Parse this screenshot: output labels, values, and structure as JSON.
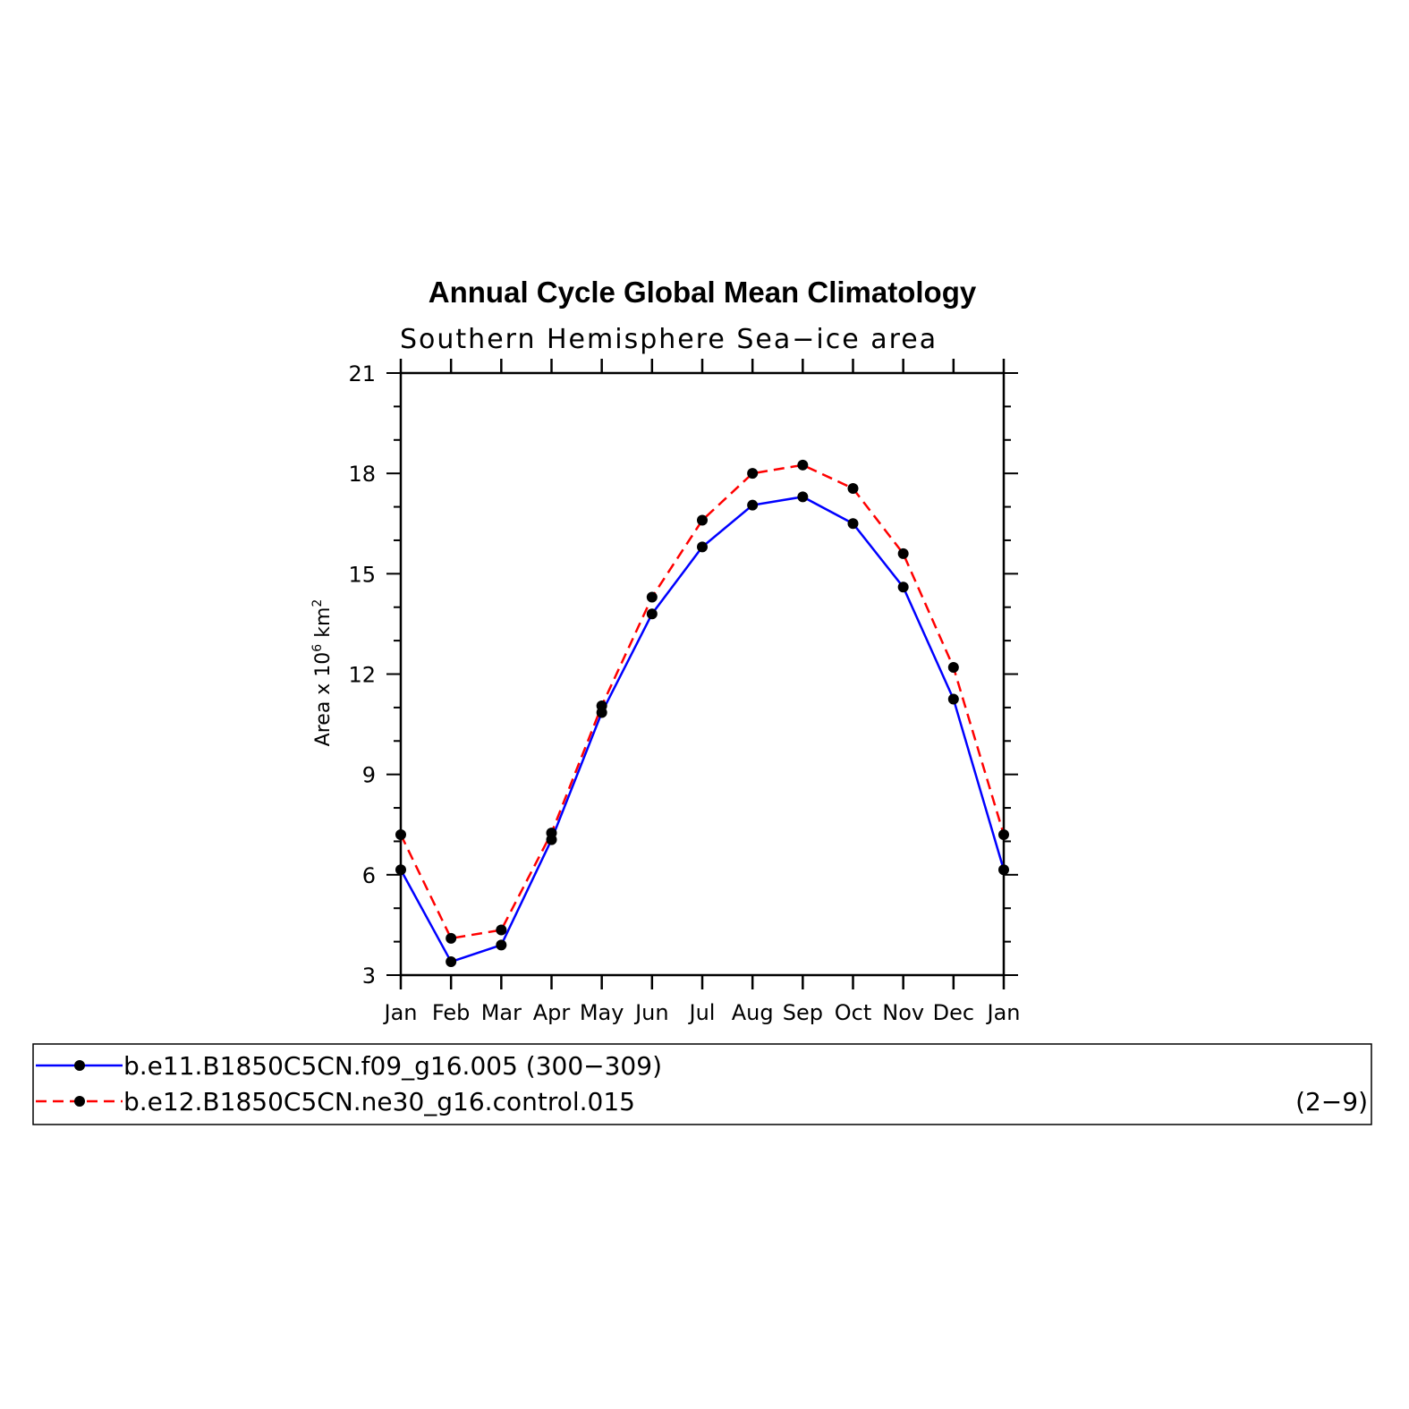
{
  "chart_data": {
    "type": "line",
    "title": "Annual Cycle Global Mean Climatology",
    "subtitle": "Southern Hemisphere Sea−ice area",
    "ylabel": {
      "prefix": "Area x 10",
      "sup1": "6",
      "mid": " km",
      "sup2": "2"
    },
    "x": [
      "Jan",
      "Feb",
      "Mar",
      "Apr",
      "May",
      "Jun",
      "Jul",
      "Aug",
      "Sep",
      "Oct",
      "Nov",
      "Dec",
      "Jan"
    ],
    "ylim": [
      3,
      21
    ],
    "yticks": [
      "3",
      "6",
      "9",
      "12",
      "15",
      "18",
      "21"
    ],
    "series": [
      {
        "name": "b.e11.B1850C5CN.f09_g16.005 (300−309)",
        "color": "#0000ff",
        "dash": "solid",
        "values": [
          6.15,
          3.4,
          3.9,
          7.05,
          10.85,
          13.8,
          15.8,
          17.05,
          17.3,
          16.5,
          14.6,
          11.25,
          6.15
        ]
      },
      {
        "name": "b.e12.B1850C5CN.ne30_g16.control.015",
        "note": "(2−9)",
        "color": "#ff0000",
        "dash": "dashed",
        "values": [
          7.2,
          4.1,
          4.35,
          7.25,
          11.05,
          14.3,
          16.6,
          18.0,
          18.25,
          17.55,
          15.6,
          12.2,
          7.2
        ]
      }
    ],
    "marker_color": "#000000",
    "grid": false,
    "legend_position": "bottom"
  }
}
